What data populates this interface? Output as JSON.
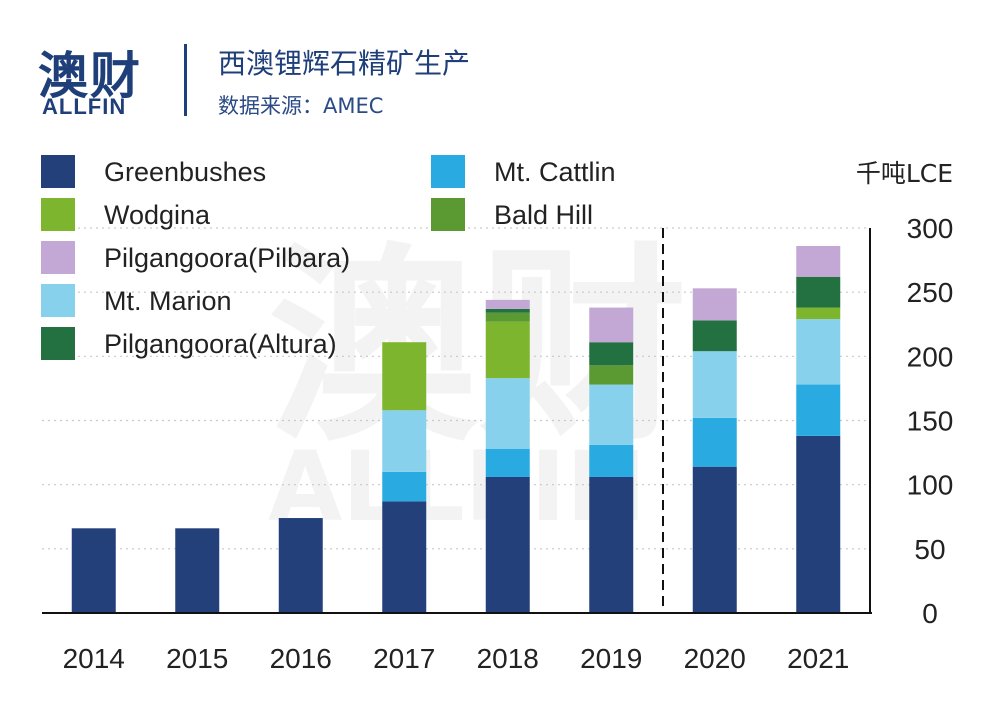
{
  "header": {
    "logo_cn": "澳财",
    "logo_en": "ALLFIN",
    "title": "西澳锂辉石精矿生产",
    "source": "数据来源：AMEC"
  },
  "watermark": {
    "cn": "澳财",
    "en": "ALLFIN"
  },
  "chart_data": {
    "type": "bar",
    "stacked": true,
    "unit_label": "千吨LCE",
    "categories": [
      "2014",
      "2015",
      "2016",
      "2017",
      "2018",
      "2019",
      "2020",
      "2021"
    ],
    "ylim": [
      0,
      300
    ],
    "yticks": [
      0,
      50,
      100,
      150,
      200,
      250,
      300
    ],
    "y_axis_side": "right",
    "grid": "dotted horizontal",
    "projection_divider_between": [
      "2019",
      "2020"
    ],
    "series": [
      {
        "name": "Greenbushes",
        "color": "#24407a",
        "values": [
          66,
          66,
          74,
          87,
          106,
          106,
          114,
          138
        ]
      },
      {
        "name": "Mt. Cattlin",
        "color": "#29abe2",
        "values": [
          0,
          0,
          0,
          23,
          22,
          25,
          38,
          40
        ]
      },
      {
        "name": "Mt. Marion",
        "color": "#87d1ec",
        "values": [
          0,
          0,
          0,
          48,
          55,
          47,
          52,
          51
        ]
      },
      {
        "name": "Wodgina",
        "color": "#7db52e",
        "values": [
          0,
          0,
          0,
          53,
          44,
          0,
          0,
          9
        ]
      },
      {
        "name": "Bald Hill",
        "color": "#5b9a33",
        "values": [
          0,
          0,
          0,
          0,
          7,
          15,
          0,
          0
        ]
      },
      {
        "name": "Pilgangoora(Altura)",
        "color": "#237040",
        "values": [
          0,
          0,
          0,
          0,
          3,
          18,
          24,
          24
        ]
      },
      {
        "name": "Pilgangoora(Pilbara)",
        "color": "#c3a8d6",
        "values": [
          0,
          0,
          0,
          0,
          7,
          27,
          25,
          24
        ]
      }
    ],
    "legend": {
      "placement": "top-left",
      "left_column": [
        "Greenbushes",
        "Wodgina",
        "Pilgangoora(Pilbara)",
        "Mt. Marion",
        "Pilgangoora(Altura)"
      ],
      "right_column": [
        "Mt. Cattlin",
        "Bald Hill"
      ]
    }
  }
}
